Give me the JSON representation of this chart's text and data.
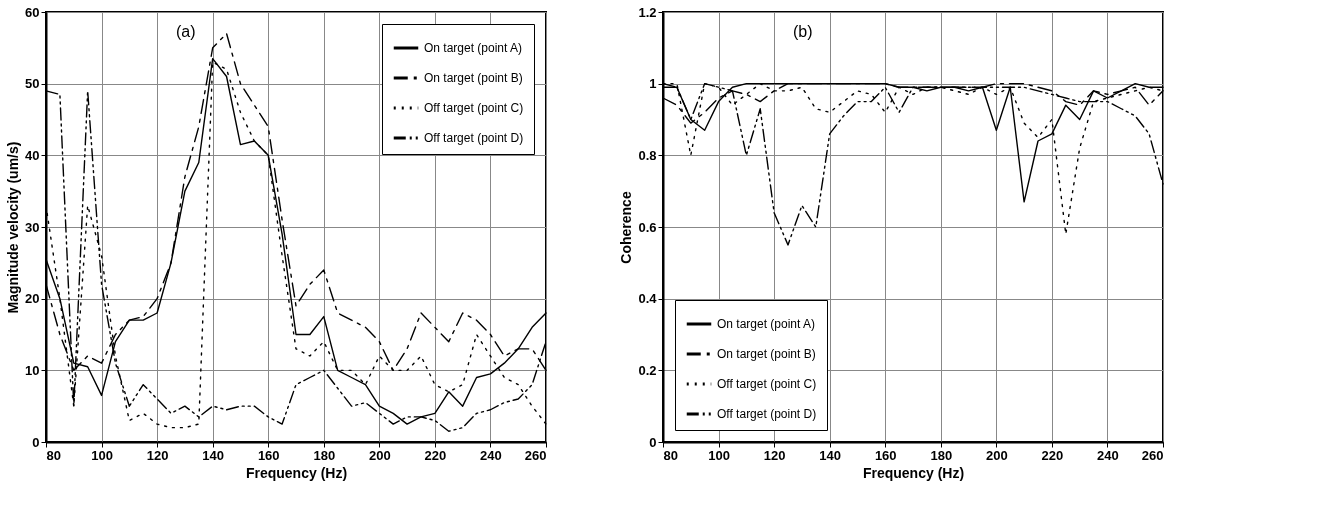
{
  "chart_data": [
    {
      "type": "line",
      "xlabel": "Frequency (Hz)",
      "ylabel": "Magnitude velocity (um/s)",
      "annotations": [
        "(a)"
      ],
      "x": [
        80,
        85,
        90,
        95,
        100,
        105,
        110,
        115,
        120,
        125,
        130,
        135,
        140,
        145,
        150,
        155,
        160,
        165,
        170,
        175,
        180,
        185,
        190,
        195,
        200,
        205,
        210,
        215,
        220,
        225,
        230,
        235,
        240,
        245,
        250,
        255,
        260
      ],
      "xlim": [
        80,
        260
      ],
      "xticks": [
        80,
        100,
        120,
        140,
        160,
        180,
        200,
        220,
        240,
        260
      ],
      "ylim": [
        0,
        60
      ],
      "yticks": [
        0,
        10,
        20,
        30,
        40,
        50,
        60
      ],
      "grid": true,
      "legend": "top right",
      "series": [
        {
          "name": "On target (point A)",
          "color": "#000000",
          "line_style": "solid",
          "values": [
            25.5,
            20,
            11,
            10.5,
            6.5,
            14,
            17,
            17,
            18,
            25,
            35,
            39,
            53.5,
            51,
            41.5,
            42,
            40,
            29,
            15,
            15,
            17.5,
            10,
            9,
            8,
            5,
            4,
            2.5,
            3.5,
            4,
            7,
            5,
            9,
            9.5,
            11,
            13,
            16,
            18
          ]
        },
        {
          "name": "On target (point B)",
          "color": "#000000",
          "line_style": "dashed",
          "values": [
            22,
            15,
            10,
            12,
            11,
            15,
            17,
            17.5,
            20,
            25,
            37,
            44,
            55,
            57,
            50,
            47,
            44,
            31,
            19,
            22,
            24,
            18,
            17,
            16,
            14,
            10,
            13,
            18,
            16,
            14,
            18,
            17,
            15,
            12,
            13,
            13,
            10
          ]
        },
        {
          "name": "Off target (point C)",
          "color": "#000000",
          "line_style": "dotted",
          "values": [
            33,
            20,
            5,
            33,
            26,
            12,
            3,
            4,
            2.5,
            2,
            2,
            2.5,
            53,
            52,
            46,
            42,
            40,
            26,
            13,
            12,
            14,
            10,
            10,
            8,
            12,
            10,
            10,
            12,
            8,
            7,
            8,
            15,
            12,
            9,
            8,
            5,
            2.5
          ]
        },
        {
          "name": "Off target (point D)",
          "color": "#000000",
          "line_style": "dashdot",
          "values": [
            49,
            48.5,
            5,
            49,
            22,
            11,
            5,
            8,
            6,
            4,
            5,
            3.5,
            5,
            4.5,
            5,
            5,
            3.5,
            2.5,
            8,
            9,
            10,
            7.5,
            5,
            5.5,
            4,
            2.5,
            3.5,
            3.5,
            3,
            1.5,
            2,
            4,
            4.5,
            5.5,
            6,
            8,
            14
          ]
        }
      ]
    },
    {
      "type": "line",
      "xlabel": "Frequency (Hz)",
      "ylabel": "Coherence",
      "annotations": [
        "(b)"
      ],
      "x": [
        80,
        85,
        90,
        95,
        100,
        105,
        110,
        115,
        120,
        125,
        130,
        135,
        140,
        145,
        150,
        155,
        160,
        165,
        170,
        175,
        180,
        185,
        190,
        195,
        200,
        205,
        210,
        215,
        220,
        225,
        230,
        235,
        240,
        245,
        250,
        255,
        260
      ],
      "xlim": [
        80,
        260
      ],
      "xticks": [
        80,
        100,
        120,
        140,
        160,
        180,
        200,
        220,
        240,
        260
      ],
      "ylim": [
        0,
        1.2
      ],
      "yticks": [
        0,
        0.2,
        0.4,
        0.6,
        0.8,
        1,
        1.2
      ],
      "grid": true,
      "legend": "bottom left",
      "series": [
        {
          "name": "On target (point A)",
          "color": "#000000",
          "line_style": "solid",
          "values": [
            0.99,
            0.99,
            0.9,
            0.87,
            0.95,
            0.99,
            1,
            1,
            1,
            1,
            1,
            1,
            1,
            1,
            1,
            1,
            1,
            0.99,
            0.99,
            0.98,
            0.99,
            0.99,
            0.98,
            0.99,
            0.87,
            0.99,
            0.67,
            0.84,
            0.86,
            0.94,
            0.9,
            0.98,
            0.96,
            0.98,
            1,
            0.99,
            0.99
          ]
        },
        {
          "name": "On target (point B)",
          "color": "#000000",
          "line_style": "dashed",
          "values": [
            0.96,
            0.94,
            0.89,
            0.92,
            0.96,
            0.98,
            0.97,
            0.95,
            0.98,
            1,
            1,
            1,
            1,
            1,
            1,
            1,
            1,
            0.99,
            0.99,
            0.99,
            0.99,
            0.99,
            0.99,
            0.99,
            1,
            1,
            1,
            0.99,
            0.98,
            0.95,
            0.94,
            0.98,
            0.97,
            0.98,
            0.99,
            0.94,
            0.98
          ]
        },
        {
          "name": "Off target (point C)",
          "color": "#000000",
          "line_style": "dotted",
          "values": [
            1,
            1,
            0.8,
            1,
            0.99,
            0.94,
            0.97,
            1,
            0.98,
            0.98,
            0.99,
            0.93,
            0.92,
            0.95,
            0.98,
            0.97,
            0.92,
            0.99,
            0.97,
            0.99,
            0.99,
            0.98,
            0.97,
            0.99,
            0.97,
            0.99,
            0.89,
            0.85,
            0.9,
            0.58,
            0.82,
            0.95,
            0.96,
            0.97,
            0.98,
            0.99,
            0.98
          ]
        },
        {
          "name": "Off target (point D)",
          "color": "#000000",
          "line_style": "dashdot",
          "values": [
            1,
            0.99,
            0.9,
            1,
            0.99,
            0.98,
            0.8,
            0.93,
            0.64,
            0.55,
            0.66,
            0.6,
            0.86,
            0.91,
            0.95,
            0.95,
            0.99,
            0.92,
            0.99,
            0.99,
            0.99,
            0.99,
            0.99,
            0.99,
            0.99,
            0.99,
            0.99,
            0.98,
            0.97,
            0.96,
            0.95,
            0.95,
            0.95,
            0.93,
            0.91,
            0.86,
            0.72
          ]
        }
      ]
    }
  ]
}
